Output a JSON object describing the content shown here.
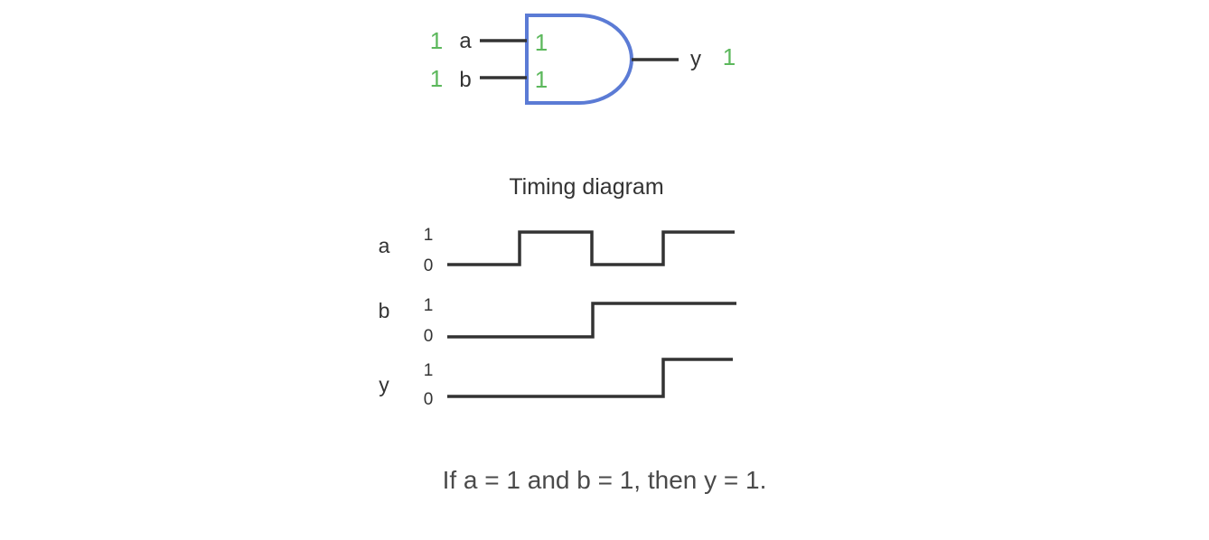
{
  "gate": {
    "type": "AND",
    "outline_color": "#5b7bd5",
    "value_color": "#5cb85c",
    "inputs": [
      {
        "name": "a",
        "value": "1",
        "pin_value": "1"
      },
      {
        "name": "b",
        "value": "1",
        "pin_value": "1"
      }
    ],
    "output": {
      "name": "y",
      "value": "1"
    }
  },
  "timing": {
    "title": "Timing diagram",
    "signals": [
      {
        "name": "a",
        "high_label": "1",
        "low_label": "0",
        "levels": [
          0,
          1,
          0,
          1
        ]
      },
      {
        "name": "b",
        "high_label": "1",
        "low_label": "0",
        "levels": [
          0,
          0,
          1,
          1
        ]
      },
      {
        "name": "y",
        "high_label": "1",
        "low_label": "0",
        "levels": [
          0,
          0,
          0,
          1
        ]
      }
    ]
  },
  "caption": "If a = 1 and b = 1, then y = 1."
}
